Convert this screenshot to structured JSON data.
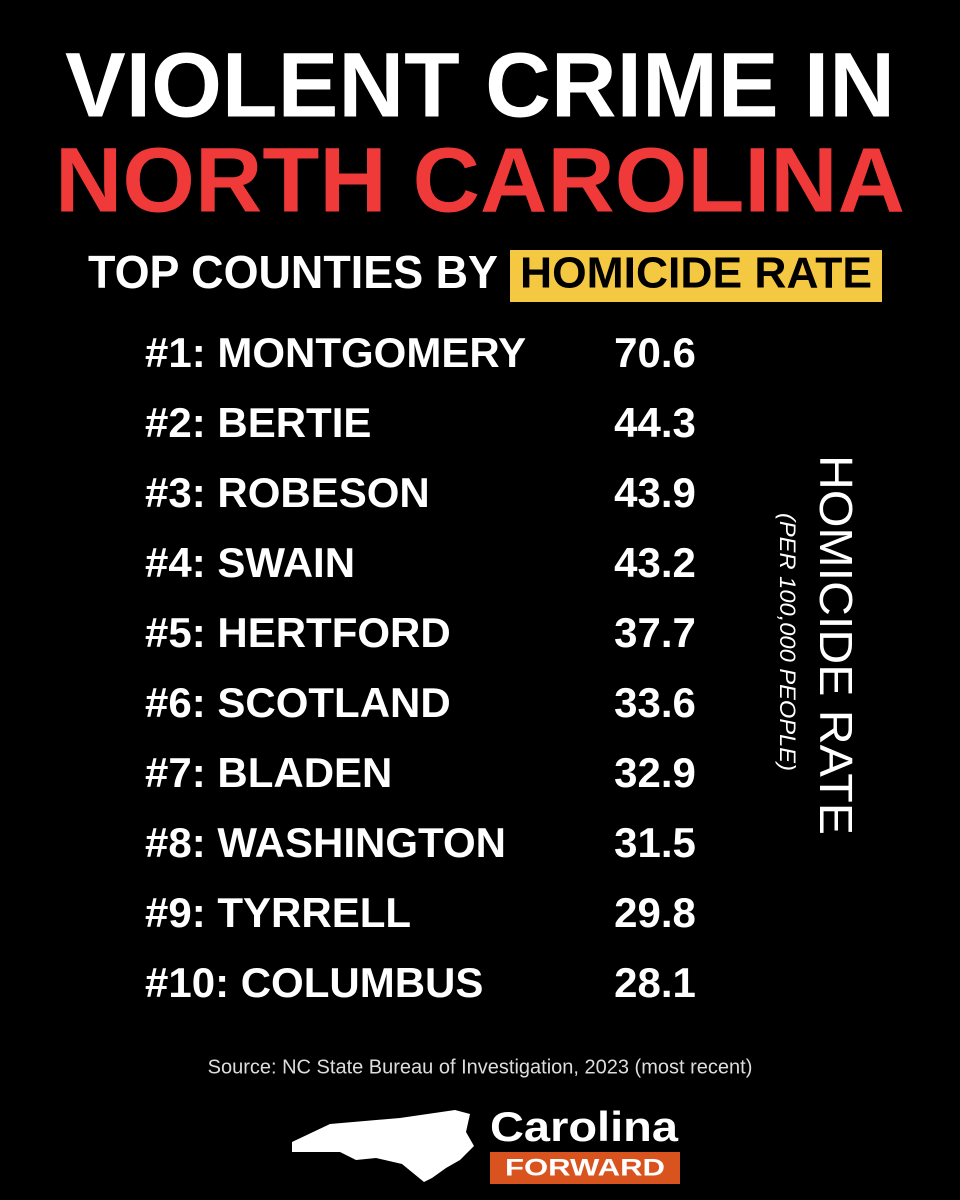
{
  "header": {
    "title_line1": "VIOLENT CRIME IN",
    "title_line2": "NORTH CAROLINA",
    "subtitle": "TOP COUNTIES BY",
    "subtitle_highlight": "HOMICIDE RATE"
  },
  "table": {
    "rows": [
      [
        "#1: MONTGOMERY",
        70.6
      ],
      [
        "#2: BERTIE",
        44.3
      ],
      [
        "#3: ROBESON",
        43.9
      ],
      [
        "#4: SWAIN",
        43.2
      ],
      [
        "#5: HERTFORD",
        37.7
      ],
      [
        "#6: SCOTLAND",
        33.6
      ],
      [
        "#7: BLADEN",
        32.9
      ],
      [
        "#8: WASHINGTON",
        31.5
      ],
      [
        "#9: TYRRELL",
        29.8
      ],
      [
        "#10: COLUMBUS",
        28.1
      ]
    ],
    "side_label": "HOMICIDE RATE",
    "side_note": "(PER 100,000 PEOPLE)"
  },
  "footer": {
    "source": "Source: NC State Bureau of Investigation, 2023 (most recent)",
    "logo_top": "Carolina",
    "logo_bottom": "FORWARD"
  }
}
